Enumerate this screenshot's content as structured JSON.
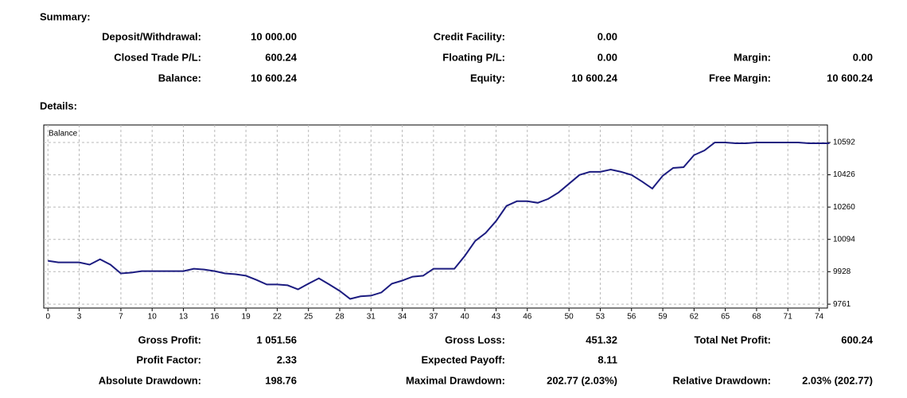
{
  "summary": {
    "heading": "Summary:",
    "rows": [
      [
        [
          "Deposit/Withdrawal:",
          "10 000.00"
        ],
        [
          "Credit Facility:",
          "0.00"
        ]
      ],
      [
        [
          "Closed Trade P/L:",
          "600.24"
        ],
        [
          "Floating P/L:",
          "0.00"
        ],
        [
          "Margin:",
          "0.00"
        ]
      ],
      [
        [
          "Balance:",
          "10 600.24"
        ],
        [
          "Equity:",
          "10 600.24"
        ],
        [
          "Free Margin:",
          "10 600.24"
        ]
      ]
    ]
  },
  "details": {
    "heading": "Details:",
    "rows": [
      [
        [
          "Gross Profit:",
          "1 051.56"
        ],
        [
          "Gross Loss:",
          "451.32"
        ],
        [
          "Total Net Profit:",
          "600.24"
        ]
      ],
      [
        [
          "Profit Factor:",
          "2.33"
        ],
        [
          "Expected Payoff:",
          "8.11"
        ]
      ],
      [
        [
          "Absolute Drawdown:",
          "198.76"
        ],
        [
          "Maximal Drawdown:",
          "202.77 (2.03%)"
        ],
        [
          "Relative Drawdown:",
          "2.03% (202.77)"
        ]
      ]
    ]
  },
  "chart_data": {
    "type": "line",
    "x": [
      0,
      1,
      2,
      3,
      4,
      5,
      6,
      7,
      8,
      9,
      10,
      11,
      12,
      13,
      14,
      15,
      16,
      17,
      18,
      19,
      20,
      21,
      22,
      23,
      24,
      25,
      26,
      27,
      28,
      29,
      30,
      31,
      32,
      33,
      34,
      35,
      36,
      37,
      38,
      39,
      40,
      41,
      42,
      43,
      44,
      45,
      46,
      47,
      48,
      49,
      50,
      51,
      52,
      53,
      54,
      55,
      56,
      57,
      58,
      59,
      60,
      61,
      62,
      63,
      64,
      65,
      66,
      67,
      68,
      69,
      70,
      71,
      72,
      73,
      74,
      75
    ],
    "series": [
      {
        "name": "Balance",
        "color": "#1c1c80",
        "values": [
          9984,
          9976,
          9976,
          9976,
          9964,
          9992,
          9964,
          9919,
          9923,
          9931,
          9931,
          9931,
          9931,
          9931,
          9943,
          9939,
          9931,
          9919,
          9915,
          9907,
          9886,
          9862,
          9862,
          9858,
          9837,
          9866,
          9894,
          9862,
          9829,
          9788,
          9801,
          9805,
          9821,
          9866,
          9882,
          9902,
          9907,
          9943,
          9943,
          9943,
          10009,
          10086,
          10127,
          10188,
          10266,
          10290,
          10290,
          10282,
          10302,
          10335,
          10380,
          10425,
          10441,
          10441,
          10453,
          10441,
          10425,
          10392,
          10355,
          10421,
          10461,
          10465,
          10527,
          10551,
          10592,
          10592,
          10588,
          10588,
          10592,
          10592,
          10592,
          10592,
          10592,
          10588,
          10588,
          10588
        ]
      }
    ],
    "xlim": [
      -0.4,
      74.8
    ],
    "ylim": [
      9741,
      10682
    ],
    "xticks": [
      0,
      3,
      7,
      10,
      13,
      16,
      19,
      22,
      25,
      28,
      31,
      34,
      37,
      40,
      43,
      46,
      50,
      53,
      56,
      59,
      62,
      65,
      68,
      71,
      74
    ],
    "yticks": [
      9761,
      9928,
      10094,
      10260,
      10426,
      10592
    ],
    "grid": true
  }
}
